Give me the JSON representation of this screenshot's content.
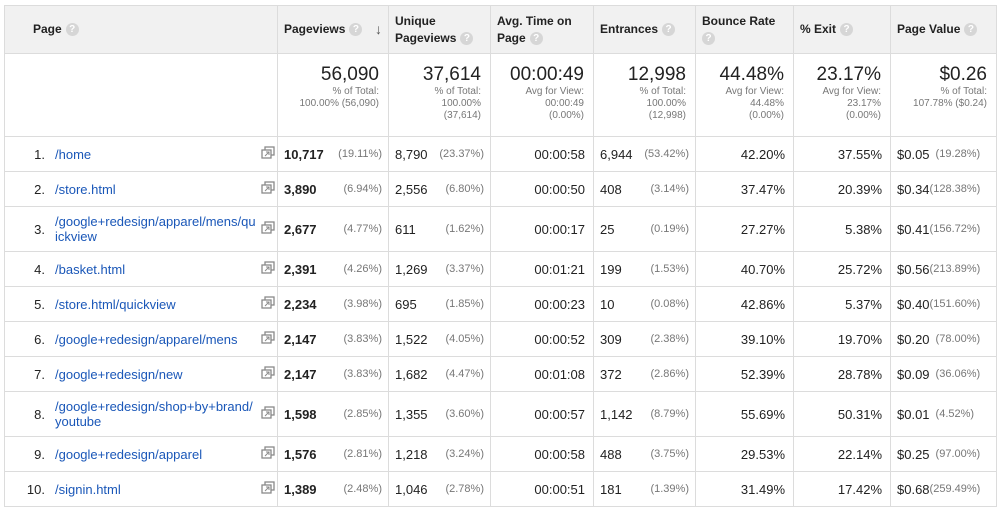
{
  "headers": {
    "page": "Page",
    "pageviews": "Pageviews",
    "unique": [
      "Unique",
      "Pageviews"
    ],
    "avg_time": [
      "Avg. Time on",
      "Page"
    ],
    "entrances": "Entrances",
    "bounce": "Bounce Rate",
    "exit": "% Exit",
    "value": "Page Value",
    "help_glyph": "?",
    "sort_glyph": "↓"
  },
  "totals": {
    "pageviews": {
      "main": "56,090",
      "l1": "% of Total:",
      "l2": "100.00% (56,090)",
      "l3": ""
    },
    "unique": {
      "main": "37,614",
      "l1": "% of Total:",
      "l2": "100.00%",
      "l3": "(37,614)"
    },
    "avg_time": {
      "main": "00:00:49",
      "l1": "Avg for View:",
      "l2": "00:00:49",
      "l3": "(0.00%)"
    },
    "entrances": {
      "main": "12,998",
      "l1": "% of Total:",
      "l2": "100.00%",
      "l3": "(12,998)"
    },
    "bounce": {
      "main": "44.48%",
      "l1": "Avg for View:",
      "l2": "44.48%",
      "l3": "(0.00%)"
    },
    "exit": {
      "main": "23.17%",
      "l1": "Avg for View:",
      "l2": "23.17%",
      "l3": "(0.00%)"
    },
    "value": {
      "main": "$0.26",
      "l1": "% of Total:",
      "l2": "107.78% ($0.24)",
      "l3": ""
    }
  },
  "rows": [
    {
      "idx": "1.",
      "page": "/home",
      "pv": "10,717",
      "pv_pct": "(19.11%)",
      "upv": "8,790",
      "upv_pct": "(23.37%)",
      "time": "00:00:58",
      "ent": "6,944",
      "ent_pct": "(53.42%)",
      "bounce": "42.20%",
      "exit": "37.55%",
      "val": "$0.05",
      "val_pct": "(19.28%)"
    },
    {
      "idx": "2.",
      "page": "/store.html",
      "pv": "3,890",
      "pv_pct": "(6.94%)",
      "upv": "2,556",
      "upv_pct": "(6.80%)",
      "time": "00:00:50",
      "ent": "408",
      "ent_pct": "(3.14%)",
      "bounce": "37.47%",
      "exit": "20.39%",
      "val": "$0.34",
      "val_pct": "(128.38%)"
    },
    {
      "idx": "3.",
      "page": "/google+redesign/apparel/mens/quickview",
      "pv": "2,677",
      "pv_pct": "(4.77%)",
      "upv": "611",
      "upv_pct": "(1.62%)",
      "time": "00:00:17",
      "ent": "25",
      "ent_pct": "(0.19%)",
      "bounce": "27.27%",
      "exit": "5.38%",
      "val": "$0.41",
      "val_pct": "(156.72%)"
    },
    {
      "idx": "4.",
      "page": "/basket.html",
      "pv": "2,391",
      "pv_pct": "(4.26%)",
      "upv": "1,269",
      "upv_pct": "(3.37%)",
      "time": "00:01:21",
      "ent": "199",
      "ent_pct": "(1.53%)",
      "bounce": "40.70%",
      "exit": "25.72%",
      "val": "$0.56",
      "val_pct": "(213.89%)"
    },
    {
      "idx": "5.",
      "page": "/store.html/quickview",
      "pv": "2,234",
      "pv_pct": "(3.98%)",
      "upv": "695",
      "upv_pct": "(1.85%)",
      "time": "00:00:23",
      "ent": "10",
      "ent_pct": "(0.08%)",
      "bounce": "42.86%",
      "exit": "5.37%",
      "val": "$0.40",
      "val_pct": "(151.60%)"
    },
    {
      "idx": "6.",
      "page": "/google+redesign/apparel/mens",
      "pv": "2,147",
      "pv_pct": "(3.83%)",
      "upv": "1,522",
      "upv_pct": "(4.05%)",
      "time": "00:00:52",
      "ent": "309",
      "ent_pct": "(2.38%)",
      "bounce": "39.10%",
      "exit": "19.70%",
      "val": "$0.20",
      "val_pct": "(78.00%)"
    },
    {
      "idx": "7.",
      "page": "/google+redesign/new",
      "pv": "2,147",
      "pv_pct": "(3.83%)",
      "upv": "1,682",
      "upv_pct": "(4.47%)",
      "time": "00:01:08",
      "ent": "372",
      "ent_pct": "(2.86%)",
      "bounce": "52.39%",
      "exit": "28.78%",
      "val": "$0.09",
      "val_pct": "(36.06%)"
    },
    {
      "idx": "8.",
      "page": "/google+redesign/shop+by+brand/youtube",
      "pv": "1,598",
      "pv_pct": "(2.85%)",
      "upv": "1,355",
      "upv_pct": "(3.60%)",
      "time": "00:00:57",
      "ent": "1,142",
      "ent_pct": "(8.79%)",
      "bounce": "55.69%",
      "exit": "50.31%",
      "val": "$0.01",
      "val_pct": "(4.52%)"
    },
    {
      "idx": "9.",
      "page": "/google+redesign/apparel",
      "pv": "1,576",
      "pv_pct": "(2.81%)",
      "upv": "1,218",
      "upv_pct": "(3.24%)",
      "time": "00:00:58",
      "ent": "488",
      "ent_pct": "(3.75%)",
      "bounce": "29.53%",
      "exit": "22.14%",
      "val": "$0.25",
      "val_pct": "(97.00%)"
    },
    {
      "idx": "10.",
      "page": "/signin.html",
      "pv": "1,389",
      "pv_pct": "(2.48%)",
      "upv": "1,046",
      "upv_pct": "(2.78%)",
      "time": "00:00:51",
      "ent": "181",
      "ent_pct": "(1.39%)",
      "bounce": "31.49%",
      "exit": "17.42%",
      "val": "$0.68",
      "val_pct": "(259.49%)"
    }
  ],
  "icons": {
    "open_page": "open-in-new-window-icon"
  },
  "colors": {
    "link": "#1a57b8",
    "header_bg": "#f1f1f1",
    "border": "#dcdcdc",
    "muted": "#777777"
  }
}
